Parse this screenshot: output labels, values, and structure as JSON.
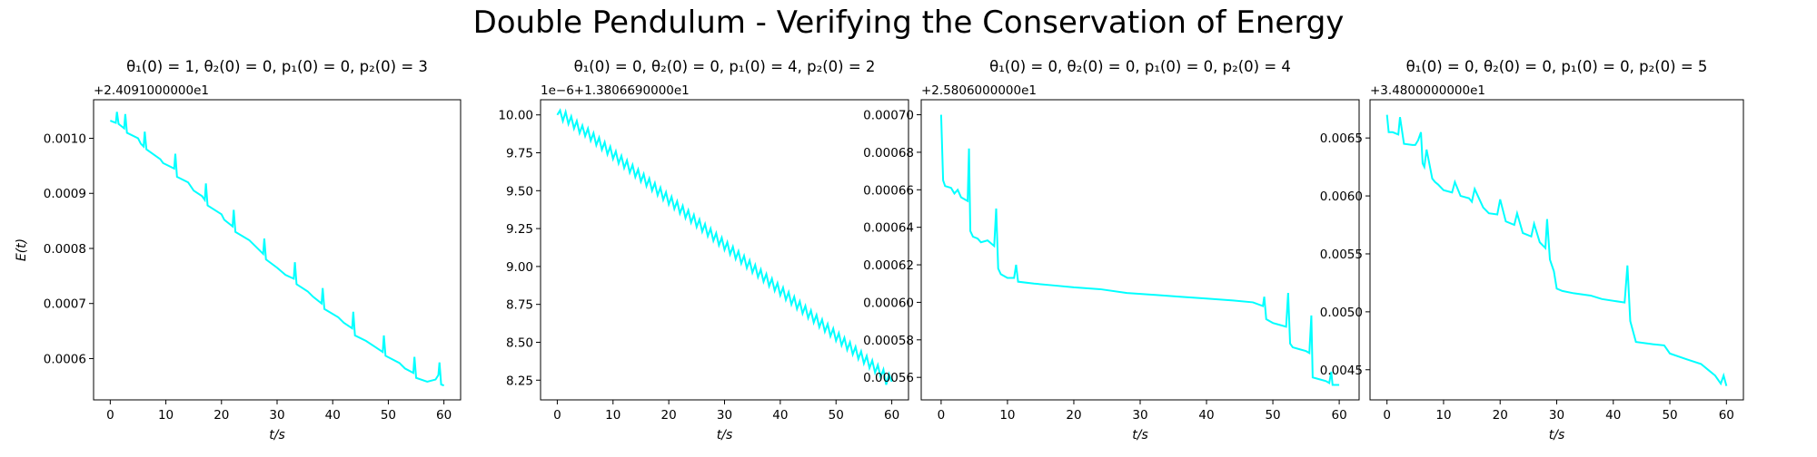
{
  "figure": {
    "suptitle": "Double Pendulum - Verifying the Conservation of Energy",
    "line_color": "#00ffff"
  },
  "chart_data": [
    {
      "type": "line",
      "title": "θ₁(0) = 1, θ₂(0) = 0, p₁(0) = 0, p₂(0) = 3",
      "xlabel": "t/s",
      "ylabel": "E(t)",
      "offset_text": "+2.4091000000e1",
      "xlim": [
        -3,
        63
      ],
      "ylim": [
        0.000525,
        0.00107
      ],
      "x_ticks": [
        0,
        10,
        20,
        30,
        40,
        50,
        60
      ],
      "x_tick_labels": [
        "0",
        "10",
        "20",
        "30",
        "40",
        "50",
        "60"
      ],
      "y_ticks": [
        0.0006,
        0.0007,
        0.0008,
        0.0009,
        0.001
      ],
      "y_tick_labels": [
        "0.0006",
        "0.0007",
        "0.0008",
        "0.0009",
        "0.0010"
      ],
      "grid": false,
      "series": [
        {
          "color": "#00ffff",
          "x": [
            0,
            0.5,
            1.0,
            1.2,
            1.5,
            2.0,
            2.5,
            2.7,
            3.0,
            5.0,
            5.5,
            6.0,
            6.2,
            6.5,
            9.0,
            9.5,
            10.5,
            11.5,
            11.7,
            12.0,
            14.0,
            15.0,
            16.5,
            17.0,
            17.2,
            17.5,
            20.0,
            20.5,
            22.0,
            22.2,
            22.5,
            25.0,
            26.0,
            27.5,
            27.7,
            28.0,
            30.0,
            31.5,
            33.0,
            33.2,
            33.5,
            35.5,
            36.5,
            38.0,
            38.2,
            38.5,
            41.0,
            42.0,
            43.5,
            43.7,
            44.0,
            46.0,
            47.5,
            49.0,
            49.2,
            49.5,
            52.0,
            53.0,
            54.5,
            54.7,
            55.0,
            57.0,
            58.5,
            59.0,
            59.2,
            59.5,
            60.0
          ],
          "values": [
            0.001032,
            0.00103,
            0.001028,
            0.001048,
            0.001026,
            0.001022,
            0.001018,
            0.001044,
            0.00101,
            0.001,
            0.00099,
            0.000985,
            0.001012,
            0.00098,
            0.000962,
            0.000955,
            0.00095,
            0.000945,
            0.000972,
            0.00093,
            0.00092,
            0.000905,
            0.000895,
            0.000888,
            0.000918,
            0.000878,
            0.000862,
            0.000852,
            0.00084,
            0.00087,
            0.00083,
            0.000815,
            0.000805,
            0.00079,
            0.000818,
            0.00078,
            0.000765,
            0.000752,
            0.000745,
            0.000775,
            0.000735,
            0.000722,
            0.000712,
            0.0007,
            0.000728,
            0.00069,
            0.000675,
            0.000665,
            0.000655,
            0.000685,
            0.000642,
            0.000632,
            0.000622,
            0.000612,
            0.000642,
            0.000605,
            0.000592,
            0.000582,
            0.000574,
            0.000603,
            0.000565,
            0.000558,
            0.000562,
            0.00057,
            0.000593,
            0.000553,
            0.000551
          ]
        }
      ]
    },
    {
      "type": "line",
      "title": "θ₁(0) = 0, θ₂(0) = 0, p₁(0) = 4, p₂(0) = 2",
      "xlabel": "t/s",
      "ylabel": "",
      "offset_text": "1e−6+1.3806690000e1",
      "xlim": [
        -3,
        63
      ],
      "ylim": [
        8.12,
        10.1
      ],
      "x_ticks": [
        0,
        10,
        20,
        30,
        40,
        50,
        60
      ],
      "x_tick_labels": [
        "0",
        "10",
        "20",
        "30",
        "40",
        "50",
        "60"
      ],
      "y_ticks": [
        8.25,
        8.5,
        8.75,
        9.0,
        9.25,
        9.5,
        9.75,
        10.0
      ],
      "y_tick_labels": [
        "8.25",
        "8.50",
        "8.75",
        "9.00",
        "9.25",
        "9.50",
        "9.75",
        "10.00"
      ],
      "grid": false,
      "series": [
        {
          "color": "#00ffff",
          "x": [
            0,
            0.5,
            1.0,
            1.5,
            2.0,
            2.5,
            3.0,
            3.5,
            4.0,
            4.5,
            5.0,
            5.5,
            6.0,
            6.5,
            7.0,
            7.5,
            8.0,
            8.5,
            9.0,
            9.5,
            10.0,
            10.5,
            11.0,
            11.5,
            12.0,
            12.5,
            13.0,
            13.5,
            14.0,
            14.5,
            15.0,
            15.5,
            16.0,
            16.5,
            17.0,
            17.5,
            18.0,
            18.5,
            19.0,
            19.5,
            20.0,
            20.5,
            21.0,
            21.5,
            22.0,
            22.5,
            23.0,
            23.5,
            24.0,
            24.5,
            25.0,
            25.5,
            26.0,
            26.5,
            27.0,
            27.5,
            28.0,
            28.5,
            29.0,
            29.5,
            30.0,
            30.5,
            31.0,
            31.5,
            32.0,
            32.5,
            33.0,
            33.5,
            34.0,
            34.5,
            35.0,
            35.5,
            36.0,
            36.5,
            37.0,
            37.5,
            38.0,
            38.5,
            39.0,
            39.5,
            40.0,
            40.5,
            41.0,
            41.5,
            42.0,
            42.5,
            43.0,
            43.5,
            44.0,
            44.5,
            45.0,
            45.5,
            46.0,
            46.5,
            47.0,
            47.5,
            48.0,
            48.5,
            49.0,
            49.5,
            50.0,
            50.5,
            51.0,
            51.5,
            52.0,
            52.5,
            53.0,
            53.5,
            54.0,
            54.5,
            55.0,
            55.5,
            56.0,
            56.5,
            57.0,
            57.5,
            58.0,
            58.5,
            59.0,
            59.5,
            60.0
          ],
          "values": [
            10.0,
            10.03,
            9.96,
            10.02,
            9.94,
            9.99,
            9.91,
            9.96,
            9.88,
            9.93,
            9.86,
            9.91,
            9.83,
            9.88,
            9.8,
            9.85,
            9.77,
            9.82,
            9.74,
            9.79,
            9.71,
            9.76,
            9.68,
            9.73,
            9.65,
            9.7,
            9.62,
            9.67,
            9.59,
            9.64,
            9.56,
            9.61,
            9.53,
            9.58,
            9.5,
            9.55,
            9.47,
            9.52,
            9.44,
            9.49,
            9.41,
            9.46,
            9.38,
            9.43,
            9.35,
            9.4,
            9.32,
            9.37,
            9.29,
            9.34,
            9.26,
            9.31,
            9.23,
            9.28,
            9.2,
            9.25,
            9.17,
            9.22,
            9.14,
            9.19,
            9.11,
            9.16,
            9.08,
            9.13,
            9.05,
            9.1,
            9.02,
            9.07,
            8.99,
            9.04,
            8.96,
            9.01,
            8.93,
            8.98,
            8.9,
            8.95,
            8.87,
            8.92,
            8.84,
            8.89,
            8.81,
            8.86,
            8.78,
            8.83,
            8.75,
            8.8,
            8.72,
            8.77,
            8.69,
            8.74,
            8.66,
            8.71,
            8.63,
            8.68,
            8.6,
            8.65,
            8.57,
            8.62,
            8.54,
            8.59,
            8.51,
            8.56,
            8.48,
            8.53,
            8.45,
            8.5,
            8.42,
            8.47,
            8.39,
            8.44,
            8.36,
            8.41,
            8.33,
            8.38,
            8.3,
            8.35,
            8.27,
            8.32,
            8.22,
            8.29,
            8.24
          ]
        }
      ]
    },
    {
      "type": "line",
      "title": "θ₁(0) = 0, θ₂(0) = 0, p₁(0) = 0, p₂(0) = 4",
      "xlabel": "t/s",
      "ylabel": "",
      "offset_text": "+2.5806000000e1",
      "xlim": [
        -3,
        63
      ],
      "ylim": [
        0.000548,
        0.000708
      ],
      "x_ticks": [
        0,
        10,
        20,
        30,
        40,
        50,
        60
      ],
      "x_tick_labels": [
        "0",
        "10",
        "20",
        "30",
        "40",
        "50",
        "60"
      ],
      "y_ticks": [
        0.00056,
        0.00058,
        0.0006,
        0.00062,
        0.00064,
        0.00066,
        0.00068,
        0.0007
      ],
      "y_tick_labels": [
        "0.00056",
        "0.00058",
        "0.00060",
        "0.00062",
        "0.00064",
        "0.00066",
        "0.00068",
        "0.00070"
      ],
      "grid": false,
      "series": [
        {
          "color": "#00ffff",
          "x": [
            0,
            0.3,
            0.6,
            1.5,
            2.0,
            2.5,
            3.0,
            3.5,
            4.0,
            4.2,
            4.4,
            4.8,
            5.5,
            6.0,
            7.0,
            8.0,
            8.3,
            8.6,
            9.0,
            10.0,
            11.0,
            11.3,
            11.6,
            14.0,
            17.0,
            20.0,
            24.0,
            28.0,
            32.0,
            36.0,
            40.0,
            44.0,
            47.0,
            48.5,
            48.7,
            49.0,
            50.0,
            51.0,
            52.0,
            52.3,
            52.6,
            53.0,
            54.0,
            55.0,
            55.5,
            55.8,
            56.0,
            57.0,
            58.0,
            58.5,
            58.8,
            59.0,
            60.0
          ],
          "values": [
            0.0007,
            0.000665,
            0.000662,
            0.000661,
            0.000658,
            0.00066,
            0.000656,
            0.000655,
            0.000654,
            0.000682,
            0.000638,
            0.000635,
            0.000634,
            0.000632,
            0.000633,
            0.00063,
            0.00065,
            0.000618,
            0.000615,
            0.000613,
            0.000613,
            0.00062,
            0.000611,
            0.00061,
            0.000609,
            0.000608,
            0.000607,
            0.000605,
            0.000604,
            0.000603,
            0.000602,
            0.000601,
            0.0006,
            0.000598,
            0.000603,
            0.000591,
            0.000589,
            0.000588,
            0.000587,
            0.000605,
            0.000578,
            0.000576,
            0.000575,
            0.000574,
            0.000573,
            0.000593,
            0.00056,
            0.000559,
            0.000558,
            0.000557,
            0.000563,
            0.000556,
            0.000556
          ]
        }
      ]
    },
    {
      "type": "line",
      "title": "θ₁(0) = 0, θ₂(0) = 0, p₁(0) = 0, p₂(0) = 5",
      "xlabel": "t/s",
      "ylabel": "",
      "offset_text": "+3.4800000000e1",
      "xlim": [
        -3,
        63
      ],
      "ylim": [
        0.00424,
        0.00683
      ],
      "x_ticks": [
        0,
        10,
        20,
        30,
        40,
        50,
        60
      ],
      "x_tick_labels": [
        "0",
        "10",
        "20",
        "30",
        "40",
        "50",
        "60"
      ],
      "y_ticks": [
        0.0045,
        0.005,
        0.0055,
        0.006,
        0.0065
      ],
      "y_tick_labels": [
        "0.0045",
        "0.0050",
        "0.0055",
        "0.0060",
        "0.0065"
      ],
      "grid": false,
      "series": [
        {
          "color": "#00ffff",
          "x": [
            0,
            0.3,
            1.0,
            2.0,
            2.3,
            3.0,
            4.5,
            5.0,
            5.5,
            6.0,
            6.3,
            6.6,
            7.0,
            8.0,
            8.5,
            9.0,
            10.0,
            11.5,
            12.0,
            13.0,
            14.5,
            15.0,
            15.5,
            17.0,
            18.0,
            19.5,
            20.0,
            21.0,
            22.5,
            23.0,
            24.0,
            25.5,
            26.0,
            27.0,
            28.0,
            28.3,
            28.8,
            29.5,
            30.0,
            31.0,
            33.0,
            36.0,
            38.0,
            42.0,
            42.5,
            43.0,
            44.0,
            47.0,
            49.0,
            50.0,
            53.0,
            55.5,
            57.0,
            58.0,
            59.0,
            59.5,
            60.0
          ],
          "values": [
            0.0067,
            0.00655,
            0.00655,
            0.00653,
            0.00668,
            0.00645,
            0.00644,
            0.00644,
            0.00648,
            0.00655,
            0.00628,
            0.00625,
            0.0064,
            0.00615,
            0.00612,
            0.0061,
            0.00605,
            0.00603,
            0.00612,
            0.006,
            0.00598,
            0.00595,
            0.00606,
            0.0059,
            0.00585,
            0.00584,
            0.00597,
            0.00578,
            0.00575,
            0.00585,
            0.00568,
            0.00565,
            0.00576,
            0.0056,
            0.00555,
            0.0058,
            0.00545,
            0.00535,
            0.0052,
            0.00518,
            0.00516,
            0.00514,
            0.00511,
            0.00508,
            0.0054,
            0.00492,
            0.00474,
            0.00472,
            0.00471,
            0.00464,
            0.00459,
            0.00455,
            0.00449,
            0.00445,
            0.00438,
            0.00445,
            0.00436
          ]
        }
      ]
    }
  ]
}
